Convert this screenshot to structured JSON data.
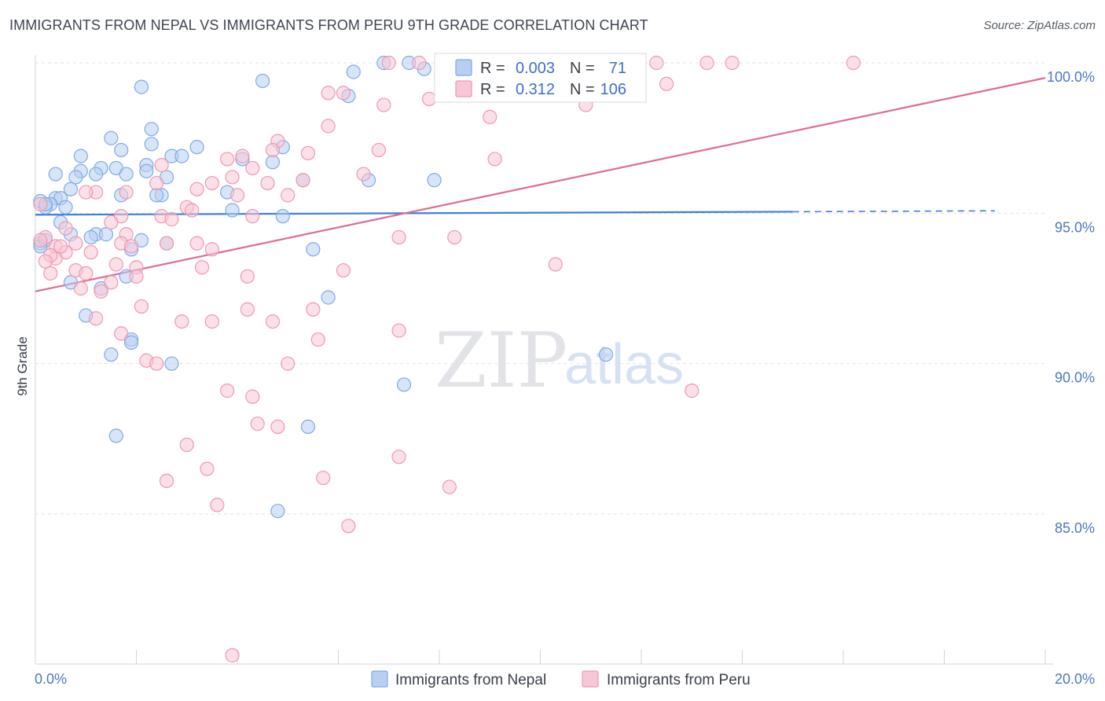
{
  "title": "IMMIGRANTS FROM NEPAL VS IMMIGRANTS FROM PERU 9TH GRADE CORRELATION CHART",
  "source": "Source: ZipAtlas.com",
  "watermark": {
    "zip": "ZIP",
    "atlas": "atlas"
  },
  "chart_data": {
    "type": "scatter",
    "title": "IMMIGRANTS FROM NEPAL VS IMMIGRANTS FROM PERU 9TH GRADE CORRELATION CHART",
    "xlabel": "",
    "ylabel": "9th Grade",
    "xlim": [
      0,
      20
    ],
    "ylim": [
      80.2,
      100.7
    ],
    "x_ticks": [
      {
        "value": 0,
        "label": "0.0%"
      },
      {
        "value": 20,
        "label": "20.0%"
      }
    ],
    "y_ticks": [
      {
        "value": 100,
        "label": "100.0%"
      },
      {
        "value": 95,
        "label": "95.0%"
      },
      {
        "value": 90,
        "label": "90.0%"
      },
      {
        "value": 85,
        "label": "85.0%"
      }
    ],
    "legend": {
      "r_label": "R =",
      "n_label": "N =",
      "entries": [
        {
          "name": "Immigrants from Nepal",
          "r": "0.003",
          "n": "71",
          "color": "#7eaae3",
          "fill": "#b7d0f2"
        },
        {
          "name": "Immigrants from Peru",
          "r": "0.312",
          "n": "106",
          "color": "#ef97b3",
          "fill": "#f8c6d6"
        }
      ]
    },
    "series": [
      {
        "name": "Immigrants from Nepal",
        "color": "#7eaae3",
        "fill": "#b7d0f2",
        "trend": {
          "x0": 0,
          "y0": 94.95,
          "x1": 15.0,
          "y1": 95.05,
          "dash_x1": 19.0,
          "dash_y1": 95.08
        },
        "points": [
          [
            7.4,
            100.0
          ],
          [
            6.9,
            100.0
          ],
          [
            7.7,
            99.8
          ],
          [
            6.3,
            99.7
          ],
          [
            4.5,
            99.4
          ],
          [
            2.1,
            99.2
          ],
          [
            6.2,
            98.9
          ],
          [
            2.3,
            97.8
          ],
          [
            1.5,
            97.5
          ],
          [
            2.3,
            97.3
          ],
          [
            1.7,
            97.1
          ],
          [
            3.2,
            97.2
          ],
          [
            4.9,
            97.2
          ],
          [
            0.9,
            96.9
          ],
          [
            2.7,
            96.9
          ],
          [
            2.9,
            96.9
          ],
          [
            4.1,
            96.8
          ],
          [
            4.7,
            96.7
          ],
          [
            2.2,
            96.6
          ],
          [
            1.3,
            96.5
          ],
          [
            1.6,
            96.5
          ],
          [
            0.9,
            96.4
          ],
          [
            2.2,
            96.4
          ],
          [
            0.4,
            96.3
          ],
          [
            1.8,
            96.3
          ],
          [
            1.2,
            96.3
          ],
          [
            0.8,
            96.2
          ],
          [
            2.6,
            96.2
          ],
          [
            5.3,
            96.1
          ],
          [
            6.6,
            96.1
          ],
          [
            7.9,
            96.1
          ],
          [
            0.7,
            95.8
          ],
          [
            3.8,
            95.7
          ],
          [
            2.5,
            95.6
          ],
          [
            1.7,
            95.6
          ],
          [
            2.4,
            95.6
          ],
          [
            0.4,
            95.5
          ],
          [
            0.5,
            95.5
          ],
          [
            0.1,
            95.4
          ],
          [
            0.3,
            95.3
          ],
          [
            0.6,
            95.2
          ],
          [
            3.9,
            95.1
          ],
          [
            4.9,
            94.9
          ],
          [
            0.5,
            94.7
          ],
          [
            0.7,
            94.3
          ],
          [
            1.2,
            94.3
          ],
          [
            1.4,
            94.3
          ],
          [
            1.1,
            94.2
          ],
          [
            2.1,
            94.1
          ],
          [
            0.1,
            94.0
          ],
          [
            2.6,
            94.0
          ],
          [
            1.9,
            93.8
          ],
          [
            5.5,
            93.8
          ],
          [
            1.8,
            92.9
          ],
          [
            0.7,
            92.7
          ],
          [
            1.3,
            92.5
          ],
          [
            5.8,
            92.2
          ],
          [
            1.0,
            91.6
          ],
          [
            1.9,
            90.8
          ],
          [
            1.9,
            90.7
          ],
          [
            1.5,
            90.3
          ],
          [
            2.7,
            90.0
          ],
          [
            11.3,
            90.3
          ],
          [
            7.3,
            89.3
          ],
          [
            1.6,
            87.6
          ],
          [
            5.4,
            87.9
          ],
          [
            4.8,
            85.1
          ],
          [
            0.2,
            94.1
          ],
          [
            0.2,
            95.2
          ],
          [
            0.1,
            93.9
          ],
          [
            0.2,
            95.3
          ]
        ]
      },
      {
        "name": "Immigrants from Peru",
        "color": "#ef97b3",
        "fill": "#f8c6d6",
        "trend": {
          "x0": 0,
          "y0": 92.4,
          "x1": 20.0,
          "y1": 99.5
        },
        "points": [
          [
            7.0,
            100.0
          ],
          [
            7.6,
            100.0
          ],
          [
            8.9,
            100.0
          ],
          [
            9.5,
            100.0
          ],
          [
            12.3,
            100.0
          ],
          [
            13.3,
            100.0
          ],
          [
            13.8,
            100.0
          ],
          [
            16.2,
            100.0
          ],
          [
            9.6,
            99.7
          ],
          [
            9.9,
            99.2
          ],
          [
            12.5,
            99.3
          ],
          [
            5.8,
            99.0
          ],
          [
            6.1,
            99.0
          ],
          [
            7.8,
            98.8
          ],
          [
            6.9,
            98.6
          ],
          [
            10.9,
            98.6
          ],
          [
            9.0,
            98.2
          ],
          [
            5.8,
            97.9
          ],
          [
            4.8,
            97.4
          ],
          [
            4.7,
            97.1
          ],
          [
            6.8,
            97.1
          ],
          [
            5.4,
            97.0
          ],
          [
            4.1,
            96.9
          ],
          [
            3.8,
            96.8
          ],
          [
            9.1,
            96.8
          ],
          [
            2.5,
            96.6
          ],
          [
            4.3,
            96.5
          ],
          [
            6.5,
            96.3
          ],
          [
            3.9,
            96.2
          ],
          [
            5.3,
            96.1
          ],
          [
            2.4,
            96.0
          ],
          [
            3.5,
            96.0
          ],
          [
            4.6,
            96.0
          ],
          [
            3.2,
            95.8
          ],
          [
            1.2,
            95.7
          ],
          [
            1.0,
            95.7
          ],
          [
            1.8,
            95.7
          ],
          [
            4.0,
            95.6
          ],
          [
            5.0,
            95.6
          ],
          [
            3.0,
            95.2
          ],
          [
            3.1,
            95.1
          ],
          [
            2.5,
            94.9
          ],
          [
            1.7,
            94.9
          ],
          [
            4.3,
            94.9
          ],
          [
            2.7,
            94.8
          ],
          [
            1.5,
            94.7
          ],
          [
            0.6,
            94.5
          ],
          [
            1.8,
            94.3
          ],
          [
            7.2,
            94.2
          ],
          [
            8.3,
            94.2
          ],
          [
            0.2,
            94.2
          ],
          [
            2.6,
            94.0
          ],
          [
            3.2,
            94.0
          ],
          [
            0.8,
            94.0
          ],
          [
            1.7,
            94.0
          ],
          [
            0.4,
            93.9
          ],
          [
            1.9,
            93.9
          ],
          [
            3.5,
            93.8
          ],
          [
            0.6,
            93.7
          ],
          [
            1.1,
            93.7
          ],
          [
            0.4,
            93.5
          ],
          [
            10.3,
            93.3
          ],
          [
            1.6,
            93.3
          ],
          [
            2.0,
            93.2
          ],
          [
            3.3,
            93.2
          ],
          [
            0.8,
            93.1
          ],
          [
            6.1,
            93.1
          ],
          [
            1.0,
            93.0
          ],
          [
            0.3,
            93.0
          ],
          [
            2.0,
            92.9
          ],
          [
            4.2,
            92.9
          ],
          [
            1.5,
            92.7
          ],
          [
            0.9,
            92.5
          ],
          [
            1.3,
            92.4
          ],
          [
            2.1,
            91.9
          ],
          [
            4.2,
            91.8
          ],
          [
            5.5,
            91.8
          ],
          [
            1.2,
            91.5
          ],
          [
            2.9,
            91.4
          ],
          [
            3.5,
            91.4
          ],
          [
            4.7,
            91.4
          ],
          [
            7.2,
            91.1
          ],
          [
            1.7,
            91.0
          ],
          [
            5.6,
            90.8
          ],
          [
            2.2,
            90.1
          ],
          [
            2.4,
            90.0
          ],
          [
            5.0,
            90.0
          ],
          [
            3.8,
            89.1
          ],
          [
            4.3,
            88.9
          ],
          [
            13.0,
            89.1
          ],
          [
            4.4,
            88.0
          ],
          [
            4.8,
            87.9
          ],
          [
            3.0,
            87.3
          ],
          [
            7.2,
            86.9
          ],
          [
            3.4,
            86.5
          ],
          [
            5.7,
            86.2
          ],
          [
            2.6,
            86.1
          ],
          [
            8.2,
            85.9
          ],
          [
            3.6,
            85.3
          ],
          [
            6.2,
            84.6
          ],
          [
            3.9,
            80.3
          ],
          [
            0.1,
            95.3
          ],
          [
            0.5,
            93.9
          ],
          [
            0.3,
            93.6
          ],
          [
            0.1,
            94.1
          ],
          [
            0.2,
            93.4
          ]
        ]
      }
    ]
  }
}
